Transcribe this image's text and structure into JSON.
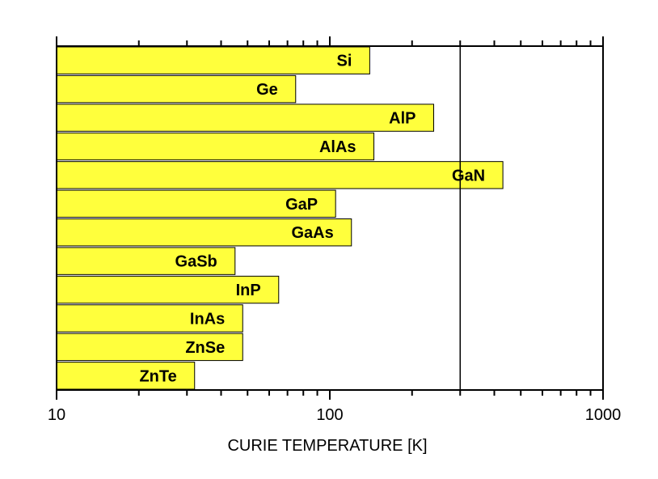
{
  "chart_data": {
    "type": "bar",
    "orientation": "horizontal",
    "xscale": "log",
    "xlim": [
      10,
      1000
    ],
    "xlabel": "CURIE TEMPERATURE [K]",
    "title": "",
    "ylabel": "",
    "grid": false,
    "bar_color": "#ffff3c",
    "reference_line_x": 300,
    "x_tick_labels": [
      "10",
      "100",
      "1000"
    ],
    "x_tick_values": [
      10,
      100,
      1000
    ],
    "categories": [
      "Si",
      "Ge",
      "AlP",
      "AlAs",
      "GaN",
      "GaP",
      "GaAs",
      "GaSb",
      "InP",
      "InAs",
      "ZnSe",
      "ZnTe"
    ],
    "values": [
      140,
      75,
      240,
      145,
      430,
      105,
      120,
      45,
      65,
      48,
      48,
      32
    ]
  }
}
